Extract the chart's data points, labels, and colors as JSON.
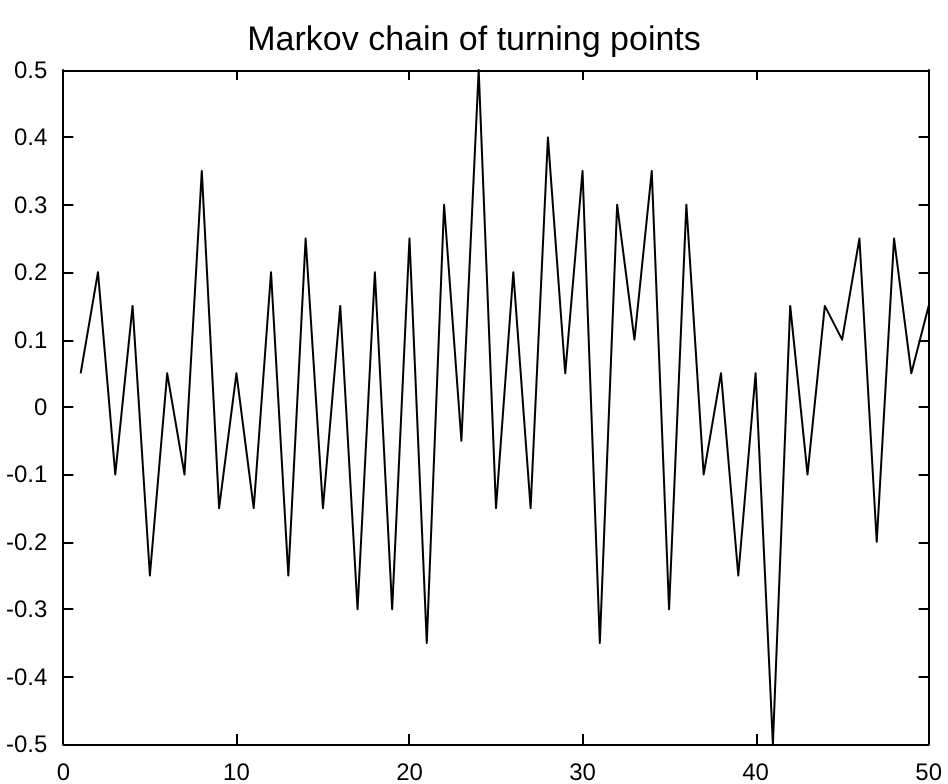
{
  "chart_data": {
    "type": "line",
    "title": "Markov chain of turning points",
    "x": [
      1,
      2,
      3,
      4,
      5,
      6,
      7,
      8,
      9,
      10,
      11,
      12,
      13,
      14,
      15,
      16,
      17,
      18,
      19,
      20,
      21,
      22,
      23,
      24,
      25,
      26,
      27,
      28,
      29,
      30,
      31,
      32,
      33,
      34,
      35,
      36,
      37,
      38,
      39,
      40,
      41,
      42,
      43,
      44,
      45,
      46,
      47,
      48,
      49,
      50
    ],
    "series": [
      {
        "color": "#000000",
        "values": [
          0.05,
          0.2,
          -0.1,
          0.15,
          -0.25,
          0.05,
          -0.1,
          0.35,
          -0.15,
          0.05,
          -0.15,
          0.2,
          -0.25,
          0.25,
          -0.15,
          0.15,
          -0.3,
          0.2,
          -0.3,
          0.25,
          -0.35,
          0.3,
          -0.05,
          0.5,
          -0.15,
          0.2,
          -0.15,
          0.4,
          0.05,
          0.35,
          -0.35,
          0.3,
          0.1,
          0.35,
          -0.3,
          0.3,
          -0.1,
          0.05,
          -0.25,
          0.05,
          -0.5,
          0.15,
          -0.1,
          0.15,
          0.1,
          0.25,
          -0.2,
          0.25,
          0.05,
          0.15
        ]
      }
    ],
    "xlim": [
      0,
      50
    ],
    "xticks": [
      0,
      10,
      20,
      30,
      40,
      50
    ],
    "ylim": [
      -0.5,
      0.5
    ],
    "yticks": [
      -0.5,
      -0.4,
      -0.3,
      -0.2,
      -0.1,
      0,
      0.1,
      0.2,
      0.3,
      0.4,
      0.5
    ],
    "grid": false,
    "marker": "none",
    "line_style": "solid"
  }
}
